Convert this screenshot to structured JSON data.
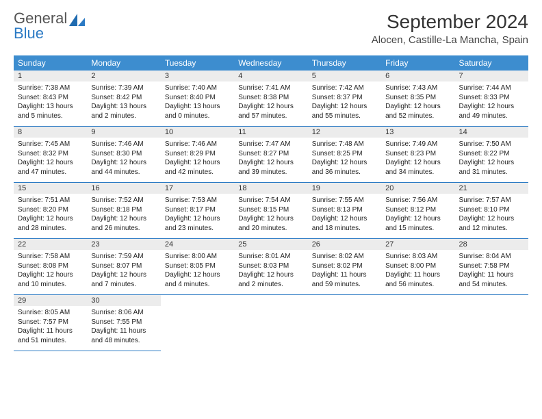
{
  "logo": {
    "general": "General",
    "blue": "Blue"
  },
  "header": {
    "title": "September 2024",
    "subtitle": "Alocen, Castille-La Mancha, Spain"
  },
  "weekdays": [
    "Sunday",
    "Monday",
    "Tuesday",
    "Wednesday",
    "Thursday",
    "Friday",
    "Saturday"
  ],
  "weeks": [
    [
      {
        "n": "1",
        "sr": "7:38 AM",
        "ss": "8:43 PM",
        "dl": "13 hours and 5 minutes."
      },
      {
        "n": "2",
        "sr": "7:39 AM",
        "ss": "8:42 PM",
        "dl": "13 hours and 2 minutes."
      },
      {
        "n": "3",
        "sr": "7:40 AM",
        "ss": "8:40 PM",
        "dl": "13 hours and 0 minutes."
      },
      {
        "n": "4",
        "sr": "7:41 AM",
        "ss": "8:38 PM",
        "dl": "12 hours and 57 minutes."
      },
      {
        "n": "5",
        "sr": "7:42 AM",
        "ss": "8:37 PM",
        "dl": "12 hours and 55 minutes."
      },
      {
        "n": "6",
        "sr": "7:43 AM",
        "ss": "8:35 PM",
        "dl": "12 hours and 52 minutes."
      },
      {
        "n": "7",
        "sr": "7:44 AM",
        "ss": "8:33 PM",
        "dl": "12 hours and 49 minutes."
      }
    ],
    [
      {
        "n": "8",
        "sr": "7:45 AM",
        "ss": "8:32 PM",
        "dl": "12 hours and 47 minutes."
      },
      {
        "n": "9",
        "sr": "7:46 AM",
        "ss": "8:30 PM",
        "dl": "12 hours and 44 minutes."
      },
      {
        "n": "10",
        "sr": "7:46 AM",
        "ss": "8:29 PM",
        "dl": "12 hours and 42 minutes."
      },
      {
        "n": "11",
        "sr": "7:47 AM",
        "ss": "8:27 PM",
        "dl": "12 hours and 39 minutes."
      },
      {
        "n": "12",
        "sr": "7:48 AM",
        "ss": "8:25 PM",
        "dl": "12 hours and 36 minutes."
      },
      {
        "n": "13",
        "sr": "7:49 AM",
        "ss": "8:23 PM",
        "dl": "12 hours and 34 minutes."
      },
      {
        "n": "14",
        "sr": "7:50 AM",
        "ss": "8:22 PM",
        "dl": "12 hours and 31 minutes."
      }
    ],
    [
      {
        "n": "15",
        "sr": "7:51 AM",
        "ss": "8:20 PM",
        "dl": "12 hours and 28 minutes."
      },
      {
        "n": "16",
        "sr": "7:52 AM",
        "ss": "8:18 PM",
        "dl": "12 hours and 26 minutes."
      },
      {
        "n": "17",
        "sr": "7:53 AM",
        "ss": "8:17 PM",
        "dl": "12 hours and 23 minutes."
      },
      {
        "n": "18",
        "sr": "7:54 AM",
        "ss": "8:15 PM",
        "dl": "12 hours and 20 minutes."
      },
      {
        "n": "19",
        "sr": "7:55 AM",
        "ss": "8:13 PM",
        "dl": "12 hours and 18 minutes."
      },
      {
        "n": "20",
        "sr": "7:56 AM",
        "ss": "8:12 PM",
        "dl": "12 hours and 15 minutes."
      },
      {
        "n": "21",
        "sr": "7:57 AM",
        "ss": "8:10 PM",
        "dl": "12 hours and 12 minutes."
      }
    ],
    [
      {
        "n": "22",
        "sr": "7:58 AM",
        "ss": "8:08 PM",
        "dl": "12 hours and 10 minutes."
      },
      {
        "n": "23",
        "sr": "7:59 AM",
        "ss": "8:07 PM",
        "dl": "12 hours and 7 minutes."
      },
      {
        "n": "24",
        "sr": "8:00 AM",
        "ss": "8:05 PM",
        "dl": "12 hours and 4 minutes."
      },
      {
        "n": "25",
        "sr": "8:01 AM",
        "ss": "8:03 PM",
        "dl": "12 hours and 2 minutes."
      },
      {
        "n": "26",
        "sr": "8:02 AM",
        "ss": "8:02 PM",
        "dl": "11 hours and 59 minutes."
      },
      {
        "n": "27",
        "sr": "8:03 AM",
        "ss": "8:00 PM",
        "dl": "11 hours and 56 minutes."
      },
      {
        "n": "28",
        "sr": "8:04 AM",
        "ss": "7:58 PM",
        "dl": "11 hours and 54 minutes."
      }
    ],
    [
      {
        "n": "29",
        "sr": "8:05 AM",
        "ss": "7:57 PM",
        "dl": "11 hours and 51 minutes."
      },
      {
        "n": "30",
        "sr": "8:06 AM",
        "ss": "7:55 PM",
        "dl": "11 hours and 48 minutes."
      },
      null,
      null,
      null,
      null,
      null
    ]
  ],
  "labels": {
    "sunrise": "Sunrise: ",
    "sunset": "Sunset: ",
    "daylight": "Daylight: "
  },
  "colors": {
    "accent": "#3d8dcf",
    "rule": "#2b7ac4",
    "daybg": "#ececec"
  }
}
